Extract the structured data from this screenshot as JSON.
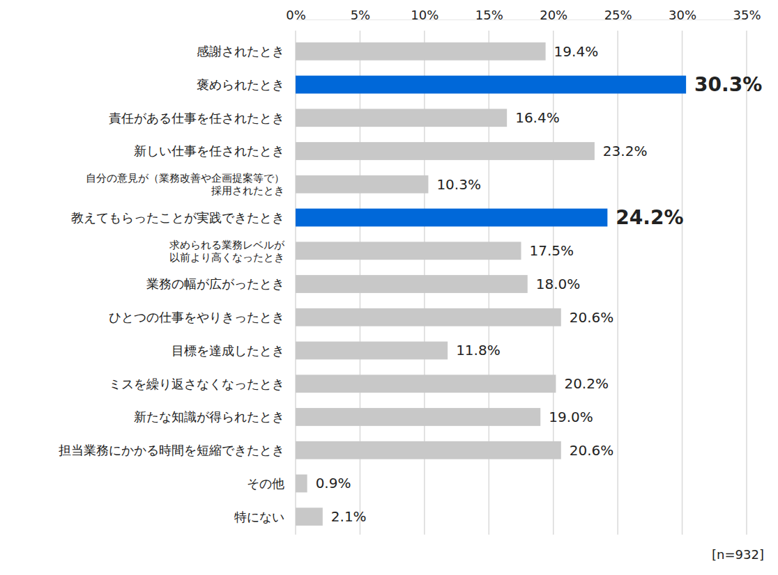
{
  "chart_data": {
    "type": "bar",
    "orientation": "horizontal",
    "categories": [
      "感謝されたとき",
      "褒められたとき",
      "責任がある仕事を任されたとき",
      "新しい仕事を任されたとき",
      "自分の意見が（業務改善や企画提案等で）\n採用されたとき",
      "教えてもらったことが実践できたとき",
      "求められる業務レベルが\n以前より高くなったとき",
      "業務の幅が広がったとき",
      "ひとつの仕事をやりきったとき",
      "目標を達成したとき",
      "ミスを繰り返さなくなったとき",
      "新たな知識が得られたとき",
      "担当業務にかかる時間を短縮できたとき",
      "その他",
      "特にない"
    ],
    "values": [
      19.4,
      30.3,
      16.4,
      23.2,
      10.3,
      24.2,
      17.5,
      18.0,
      20.6,
      11.8,
      20.2,
      19.0,
      20.6,
      0.9,
      2.1
    ],
    "value_labels": [
      "19.4%",
      "30.3%",
      "16.4%",
      "23.2%",
      "10.3%",
      "24.2%",
      "17.5%",
      "18.0%",
      "20.6%",
      "11.8%",
      "20.2%",
      "19.0%",
      "20.6%",
      "0.9%",
      "2.1%"
    ],
    "colors": [
      "#c8c8c8",
      "#0068d9",
      "#c8c8c8",
      "#c8c8c8",
      "#c8c8c8",
      "#0068d9",
      "#c8c8c8",
      "#c8c8c8",
      "#c8c8c8",
      "#c8c8c8",
      "#c8c8c8",
      "#c8c8c8",
      "#c8c8c8",
      "#c8c8c8",
      "#c8c8c8"
    ],
    "xlim": [
      0,
      35
    ],
    "xticks": [
      {
        "value": 0,
        "label": "0%"
      },
      {
        "value": 5,
        "label": "5%"
      },
      {
        "value": 10,
        "label": "10%"
      },
      {
        "value": 15,
        "label": "15%"
      },
      {
        "value": 20,
        "label": "20%"
      },
      {
        "value": 25,
        "label": "25%"
      },
      {
        "value": 30,
        "label": "30%"
      },
      {
        "value": 35,
        "label": "35%"
      }
    ],
    "grid": true,
    "data_labels": true,
    "annotations": [
      "[n=932]"
    ]
  }
}
